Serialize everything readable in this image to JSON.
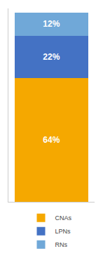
{
  "chart_data": {
    "type": "bar",
    "stacked": true,
    "categories": [
      null
    ],
    "series": [
      {
        "name": "CNAs",
        "color": "#F5A800",
        "values": [
          64
        ],
        "value_labels": [
          "64%"
        ]
      },
      {
        "name": "LPNs",
        "color": "#4472C4",
        "values": [
          22
        ],
        "value_labels": [
          "22%"
        ]
      },
      {
        "name": "RNs",
        "color": "#70A8D8",
        "values": [
          12
        ],
        "value_labels": [
          "12%"
        ]
      }
    ],
    "ylim": [
      0,
      100
    ],
    "yticks": [],
    "tick_labels": false,
    "data_labels": true,
    "legend": "bottom",
    "grid": false
  }
}
